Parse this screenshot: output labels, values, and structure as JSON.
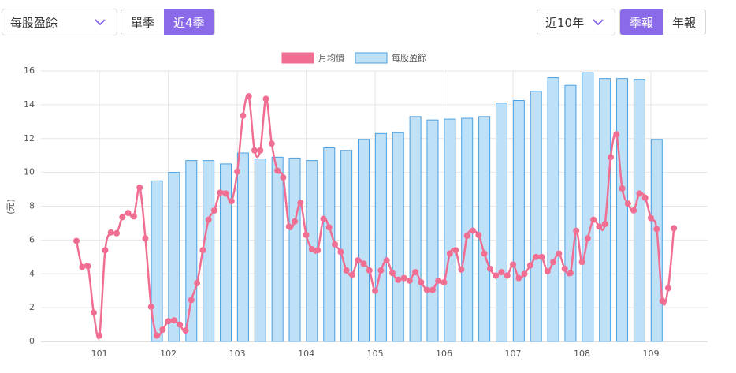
{
  "controls": {
    "metric": "每股盈餘",
    "period_options": [
      "單季",
      "近4季"
    ],
    "range": "近10年",
    "report_options": [
      "季報",
      "年報"
    ]
  },
  "chart_data": {
    "type": "bar_line",
    "y_label": "(元)",
    "ylim": [
      0,
      16
    ],
    "yticks": [
      0,
      2,
      4,
      6,
      8,
      10,
      12,
      14,
      16
    ],
    "grid": true,
    "categories": [
      null,
      null,
      null,
      null,
      "101",
      null,
      null,
      null,
      null,
      null,
      null,
      null,
      null,
      null,
      null,
      null,
      "102",
      null,
      null,
      null,
      null,
      null,
      null,
      null,
      null,
      null,
      null,
      null,
      "103",
      null,
      null,
      null,
      null,
      null,
      null,
      null,
      null,
      null,
      null,
      null,
      "104",
      null,
      null,
      null,
      null,
      null,
      null,
      null,
      null,
      null,
      null,
      null,
      "105",
      null,
      null,
      null,
      null,
      null,
      null,
      null,
      null,
      null,
      null,
      null,
      "106",
      null,
      null,
      null,
      null,
      null,
      null,
      null,
      null,
      null,
      null,
      null,
      "107",
      null,
      null,
      null,
      null,
      null,
      null,
      null,
      null,
      null,
      null,
      null,
      "108",
      null,
      null,
      null,
      null,
      null,
      null,
      null,
      null,
      null,
      null,
      null,
      "109",
      null,
      null,
      null,
      null
    ],
    "series": [
      {
        "name": "月均價",
        "type": "line",
        "color": "#f06e92",
        "values": [
          5.95,
          4.4,
          4.45,
          1.7,
          0.35,
          5.4,
          6.45,
          6.4,
          7.35,
          7.6,
          7.4,
          9.1,
          6.1,
          2.05,
          0.35,
          0.7,
          1.2,
          1.25,
          1.0,
          0.65,
          2.45,
          3.45,
          5.4,
          7.2,
          7.75,
          8.8,
          8.75,
          8.3,
          10.05,
          13.35,
          14.5,
          11.3,
          11.3,
          14.35,
          11.7,
          10.1,
          9.7,
          6.8,
          7.1,
          8.2,
          6.3,
          5.45,
          5.4,
          7.25,
          6.75,
          5.75,
          5.3,
          4.2,
          3.95,
          4.8,
          4.6,
          4.2,
          3.0,
          4.2,
          4.8,
          4.05,
          3.65,
          3.75,
          3.6,
          4.1,
          3.5,
          3.05,
          3.05,
          3.6,
          3.5,
          5.2,
          5.4,
          4.25,
          6.25,
          6.55,
          6.3,
          5.2,
          4.3,
          3.9,
          4.1,
          3.9,
          4.55,
          3.75,
          4.0,
          4.5,
          5.0,
          5.0,
          4.15,
          4.7,
          5.2,
          4.3,
          4.05,
          6.55,
          4.7,
          6.1,
          7.2,
          6.8,
          6.95,
          10.9,
          12.25,
          9.05,
          8.15,
          7.75,
          8.75,
          8.5,
          7.3,
          6.65,
          2.4,
          3.15,
          6.7
        ]
      },
      {
        "name": "每股盈餘",
        "type": "bar",
        "color": "#bfe1f8",
        "values": [
          null,
          null,
          null,
          null,
          null,
          null,
          null,
          null,
          null,
          null,
          null,
          null,
          null,
          null,
          9.5,
          null,
          null,
          10.0,
          null,
          null,
          10.7,
          null,
          null,
          10.7,
          null,
          null,
          10.5,
          null,
          null,
          11.15,
          null,
          null,
          10.8,
          null,
          null,
          10.9,
          null,
          null,
          10.85,
          null,
          null,
          10.7,
          null,
          null,
          11.45,
          null,
          null,
          11.3,
          null,
          null,
          11.95,
          null,
          null,
          12.3,
          null,
          null,
          12.35,
          null,
          null,
          13.3,
          null,
          null,
          13.1,
          null,
          null,
          13.15,
          null,
          null,
          13.2,
          null,
          null,
          13.3,
          null,
          null,
          14.1,
          null,
          null,
          14.25,
          null,
          null,
          14.8,
          null,
          null,
          15.6,
          null,
          null,
          15.15,
          null,
          null,
          15.9,
          null,
          null,
          15.55,
          null,
          null,
          15.55,
          null,
          null,
          15.5,
          null,
          null,
          11.95,
          null,
          null,
          null
        ]
      }
    ]
  }
}
